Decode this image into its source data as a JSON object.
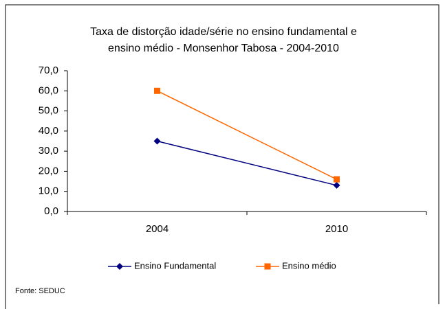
{
  "chart_data": {
    "type": "line",
    "title": [
      "Taxa de distorção idade/série no ensino fundamental e",
      "ensino médio - Monsenhor Tabosa -  2004-2010"
    ],
    "categories": [
      "2004",
      "2010"
    ],
    "series": [
      {
        "name": "Ensino Fundamental",
        "color": "#000080",
        "marker": "diamond",
        "values": [
          35,
          13
        ]
      },
      {
        "name": "Ensino médio",
        "color": "#ff6600",
        "marker": "square",
        "values": [
          60,
          16
        ]
      }
    ],
    "ylim": [
      0,
      70
    ],
    "yticks": [
      {
        "value": 0,
        "label": "0,0"
      },
      {
        "value": 10,
        "label": "10,0"
      },
      {
        "value": 20,
        "label": "20,0"
      },
      {
        "value": 30,
        "label": "30,0"
      },
      {
        "value": 40,
        "label": "40,0"
      },
      {
        "value": 50,
        "label": "50,0"
      },
      {
        "value": 60,
        "label": "60,0"
      },
      {
        "value": 70,
        "label": "70,0"
      }
    ],
    "legend": "bottom",
    "source": "Fonte: SEDUC"
  }
}
